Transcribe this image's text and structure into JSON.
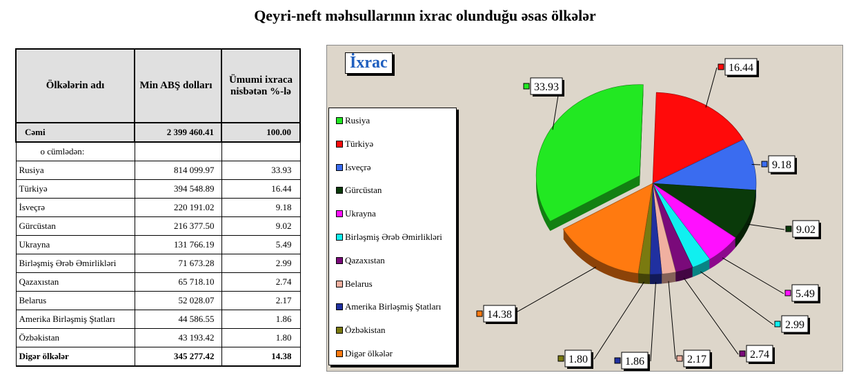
{
  "title": "Qeyri-neft məhsullarının ixrac olunduğu əsas ölkələr",
  "table": {
    "headers": [
      "Ölkələrin adı",
      "Min ABŞ dolları",
      "Ümumi ixraca nisbətən %-lə"
    ],
    "total": {
      "name": "Cəmi",
      "value": "2 399 460.41",
      "pct": "100.00"
    },
    "subheader": "o cümlədən:",
    "rows": [
      {
        "name": "Rusiya",
        "value": "814 099.97",
        "pct": "33.93"
      },
      {
        "name": "Türkiyə",
        "value": "394 548.89",
        "pct": "16.44"
      },
      {
        "name": "İsveçrə",
        "value": "220 191.02",
        "pct": "9.18"
      },
      {
        "name": "Gürcüstan",
        "value": "216 377.50",
        "pct": "9.02"
      },
      {
        "name": "Ukrayna",
        "value": "131 766.19",
        "pct": "5.49"
      },
      {
        "name": "Birləşmiş Ərəb Əmirlikləri",
        "value": "71 673.28",
        "pct": "2.99"
      },
      {
        "name": "Qazaxıstan",
        "value": "65 718.10",
        "pct": "2.74"
      },
      {
        "name": "Belarus",
        "value": "52 028.07",
        "pct": "2.17"
      },
      {
        "name": "Amerika Birləşmiş Ştatları",
        "value": "44 586.55",
        "pct": "1.86"
      },
      {
        "name": "Özbəkistan",
        "value": "43 193.42",
        "pct": "1.80"
      },
      {
        "name": "Digər ölkələr",
        "value": "345 277.42",
        "pct": "14.38"
      }
    ]
  },
  "chart_data": {
    "type": "pie",
    "title": "İxrac",
    "legend": "left",
    "categories": [
      "Rusiya",
      "Türkiyə",
      "İsveçrə",
      "Gürcüstan",
      "Ukrayna",
      "Birləşmiş Ərəb Əmirlikləri",
      "Qazaxıstan",
      "Belarus",
      "Amerika Birləşmiş Ştatları",
      "Özbəkistan",
      "Digər ölkələr"
    ],
    "values": [
      33.93,
      16.44,
      9.18,
      9.02,
      5.49,
      2.99,
      2.74,
      2.17,
      1.86,
      1.8,
      14.38
    ],
    "labels": [
      "33.93",
      "16.44",
      "9.18",
      "9.02",
      "5.49",
      "2.99",
      "2.74",
      "2.17",
      "1.86",
      "1.80",
      "14.38"
    ],
    "colors": [
      "#22e822",
      "#ff0a0a",
      "#3a6cf0",
      "#0a3a0a",
      "#ff10ff",
      "#10f0f0",
      "#7a0a7a",
      "#f0b0a0",
      "#2030a0",
      "#7a7a10",
      "#ff7a10"
    ]
  }
}
